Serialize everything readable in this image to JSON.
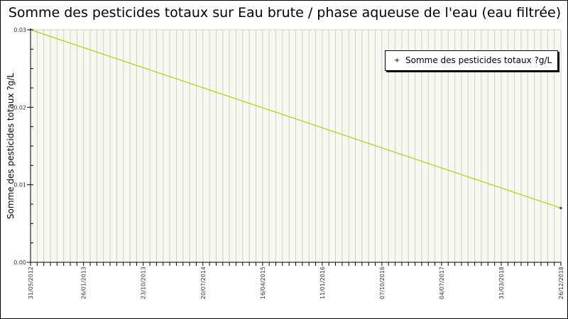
{
  "chart_data": {
    "type": "line",
    "title": "Somme des pesticides totaux sur Eau brute / phase aqueuse de l'eau (eau filtrée)",
    "ylabel": "Somme des pesticides totaux ?g/L",
    "xlabel": "",
    "xlim": [
      "2012-05-31",
      "2018-12-26"
    ],
    "ylim": [
      0,
      0.03
    ],
    "y_ticks": [
      "0.00",
      "0.01",
      "0.02",
      "0.03"
    ],
    "x_ticks": [
      "31/05/2012",
      "26/01/2013",
      "23/10/2013",
      "20/07/2014",
      "16/04/2015",
      "11/01/2016",
      "07/10/2016",
      "04/07/2017",
      "31/03/2018",
      "26/12/2018"
    ],
    "grid": "vertical",
    "legend": "top-right",
    "series": [
      {
        "name": "Somme des pesticides totaux ?g/L",
        "color": "#a8d400",
        "x": [
          "2012-05-31",
          "2018-12-26"
        ],
        "y": [
          0.03,
          0.007
        ]
      }
    ],
    "plot_background": "#f8f8f0"
  }
}
